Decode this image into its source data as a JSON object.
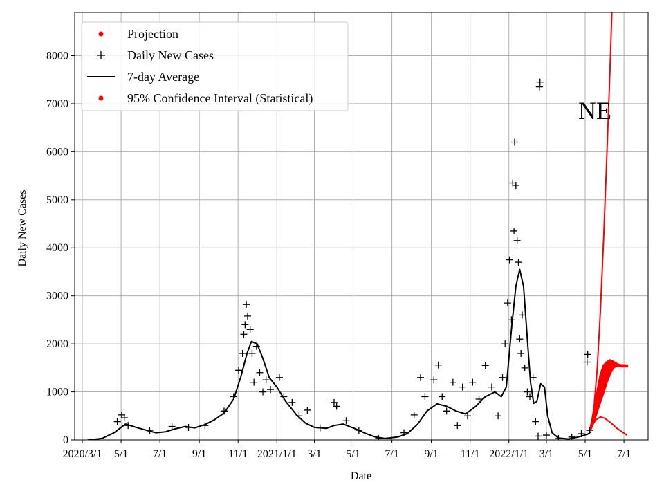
{
  "chart_data": {
    "type": "scatter",
    "annotation": "NE",
    "xlabel": "Date",
    "ylabel": "Daily New Cases",
    "xlim": [
      "2020-02-18",
      "2022-08-08"
    ],
    "ylim": [
      0,
      8900
    ],
    "x_scale": "date",
    "grid": true,
    "legend_position": "top-left",
    "colors": {
      "projection": "#ff0000",
      "observed": "#000000",
      "grid": "#b0b0b0"
    },
    "x_ticks": [
      {
        "date": "2020-03-01",
        "label": "2020/3/1"
      },
      {
        "date": "2020-05-01",
        "label": "5/1"
      },
      {
        "date": "2020-07-01",
        "label": "7/1"
      },
      {
        "date": "2020-09-01",
        "label": "9/1"
      },
      {
        "date": "2020-11-01",
        "label": "11/1"
      },
      {
        "date": "2021-01-01",
        "label": "2021/1/1"
      },
      {
        "date": "2021-03-01",
        "label": "3/1"
      },
      {
        "date": "2021-05-01",
        "label": "5/1"
      },
      {
        "date": "2021-07-01",
        "label": "7/1"
      },
      {
        "date": "2021-09-01",
        "label": "9/1"
      },
      {
        "date": "2021-11-01",
        "label": "11/1"
      },
      {
        "date": "2022-01-01",
        "label": "2022/1/1"
      },
      {
        "date": "2022-03-01",
        "label": "3/1"
      },
      {
        "date": "2022-05-01",
        "label": "5/1"
      },
      {
        "date": "2022-07-01",
        "label": "7/1"
      }
    ],
    "y_ticks": [
      0,
      1000,
      2000,
      3000,
      4000,
      5000,
      6000,
      7000,
      8000
    ],
    "legend": [
      {
        "label": "Projection",
        "marker": "dot",
        "color": "#ff0000"
      },
      {
        "label": "Daily New Cases",
        "marker": "plus",
        "color": "#000000"
      },
      {
        "label": "7-day Average",
        "marker": "line",
        "color": "#000000"
      },
      {
        "label": "95% Confidence Interval (Statistical)",
        "marker": "dot",
        "color": "#ff0000"
      }
    ],
    "series": [
      {
        "name": "7-day Average",
        "kind": "line",
        "color": "#000000",
        "points": [
          [
            "2020-03-10",
            0
          ],
          [
            "2020-04-01",
            30
          ],
          [
            "2020-04-20",
            150
          ],
          [
            "2020-05-08",
            330
          ],
          [
            "2020-05-25",
            260
          ],
          [
            "2020-06-10",
            200
          ],
          [
            "2020-06-25",
            150
          ],
          [
            "2020-07-10",
            170
          ],
          [
            "2020-07-25",
            230
          ],
          [
            "2020-08-10",
            280
          ],
          [
            "2020-08-25",
            250
          ],
          [
            "2020-09-10",
            320
          ],
          [
            "2020-09-25",
            420
          ],
          [
            "2020-10-10",
            560
          ],
          [
            "2020-10-25",
            850
          ],
          [
            "2020-11-05",
            1300
          ],
          [
            "2020-11-15",
            1800
          ],
          [
            "2020-11-22",
            2050
          ],
          [
            "2020-12-01",
            2000
          ],
          [
            "2020-12-10",
            1700
          ],
          [
            "2020-12-20",
            1300
          ],
          [
            "2021-01-01",
            1100
          ],
          [
            "2021-01-15",
            800
          ],
          [
            "2021-02-01",
            520
          ],
          [
            "2021-02-15",
            350
          ],
          [
            "2021-03-01",
            260
          ],
          [
            "2021-03-20",
            240
          ],
          [
            "2021-04-01",
            300
          ],
          [
            "2021-04-15",
            330
          ],
          [
            "2021-05-01",
            250
          ],
          [
            "2021-05-20",
            140
          ],
          [
            "2021-06-05",
            60
          ],
          [
            "2021-06-20",
            30
          ],
          [
            "2021-07-10",
            60
          ],
          [
            "2021-07-25",
            130
          ],
          [
            "2021-08-10",
            320
          ],
          [
            "2021-08-25",
            600
          ],
          [
            "2021-09-10",
            750
          ],
          [
            "2021-09-25",
            700
          ],
          [
            "2021-10-10",
            600
          ],
          [
            "2021-10-25",
            540
          ],
          [
            "2021-11-10",
            700
          ],
          [
            "2021-11-25",
            900
          ],
          [
            "2021-12-10",
            1000
          ],
          [
            "2021-12-20",
            900
          ],
          [
            "2021-12-28",
            1100
          ],
          [
            "2022-01-05",
            2300
          ],
          [
            "2022-01-12",
            3200
          ],
          [
            "2022-01-18",
            3550
          ],
          [
            "2022-01-24",
            3200
          ],
          [
            "2022-01-30",
            2100
          ],
          [
            "2022-02-04",
            1200
          ],
          [
            "2022-02-09",
            760
          ],
          [
            "2022-02-14",
            800
          ],
          [
            "2022-02-20",
            1170
          ],
          [
            "2022-02-26",
            1100
          ],
          [
            "2022-03-03",
            500
          ],
          [
            "2022-03-10",
            150
          ],
          [
            "2022-03-20",
            40
          ],
          [
            "2022-04-05",
            20
          ],
          [
            "2022-04-20",
            60
          ],
          [
            "2022-05-05",
            120
          ],
          [
            "2022-05-10",
            170
          ]
        ]
      },
      {
        "name": "Daily New Cases",
        "kind": "scatter",
        "marker": "plus",
        "color": "#000000",
        "points": [
          [
            "2020-04-25",
            380
          ],
          [
            "2020-05-02",
            520
          ],
          [
            "2020-05-06",
            460
          ],
          [
            "2020-05-12",
            300
          ],
          [
            "2020-06-15",
            200
          ],
          [
            "2020-07-20",
            280
          ],
          [
            "2020-08-15",
            260
          ],
          [
            "2020-09-10",
            300
          ],
          [
            "2020-10-10",
            600
          ],
          [
            "2020-10-25",
            900
          ],
          [
            "2020-11-02",
            1450
          ],
          [
            "2020-11-08",
            1800
          ],
          [
            "2020-11-10",
            2200
          ],
          [
            "2020-11-12",
            2400
          ],
          [
            "2020-11-14",
            2820
          ],
          [
            "2020-11-16",
            2580
          ],
          [
            "2020-11-20",
            2300
          ],
          [
            "2020-11-23",
            1800
          ],
          [
            "2020-11-26",
            1200
          ],
          [
            "2020-11-30",
            1950
          ],
          [
            "2020-12-05",
            1400
          ],
          [
            "2020-12-10",
            1000
          ],
          [
            "2020-12-15",
            1250
          ],
          [
            "2020-12-22",
            1050
          ],
          [
            "2021-01-05",
            1300
          ],
          [
            "2021-01-12",
            900
          ],
          [
            "2021-01-25",
            780
          ],
          [
            "2021-02-05",
            500
          ],
          [
            "2021-02-18",
            620
          ],
          [
            "2021-03-10",
            250
          ],
          [
            "2021-04-01",
            780
          ],
          [
            "2021-04-05",
            700
          ],
          [
            "2021-04-20",
            400
          ],
          [
            "2021-05-10",
            200
          ],
          [
            "2021-06-10",
            30
          ],
          [
            "2021-07-20",
            150
          ],
          [
            "2021-08-05",
            520
          ],
          [
            "2021-08-15",
            1300
          ],
          [
            "2021-08-22",
            900
          ],
          [
            "2021-09-05",
            1250
          ],
          [
            "2021-09-12",
            1560
          ],
          [
            "2021-09-18",
            900
          ],
          [
            "2021-09-25",
            600
          ],
          [
            "2021-10-05",
            1200
          ],
          [
            "2021-10-12",
            300
          ],
          [
            "2021-10-20",
            1100
          ],
          [
            "2021-10-28",
            500
          ],
          [
            "2021-11-05",
            1200
          ],
          [
            "2021-11-15",
            850
          ],
          [
            "2021-11-25",
            1550
          ],
          [
            "2021-12-05",
            1100
          ],
          [
            "2021-12-15",
            500
          ],
          [
            "2021-12-22",
            1300
          ],
          [
            "2021-12-26",
            2000
          ],
          [
            "2021-12-30",
            2850
          ],
          [
            "2022-01-02",
            3750
          ],
          [
            "2022-01-05",
            2500
          ],
          [
            "2022-01-07",
            5350
          ],
          [
            "2022-01-09",
            4350
          ],
          [
            "2022-01-10",
            6200
          ],
          [
            "2022-01-12",
            5300
          ],
          [
            "2022-01-14",
            4150
          ],
          [
            "2022-01-16",
            3700
          ],
          [
            "2022-01-18",
            2100
          ],
          [
            "2022-01-20",
            1800
          ],
          [
            "2022-01-22",
            2600
          ],
          [
            "2022-01-26",
            1500
          ],
          [
            "2022-01-30",
            1000
          ],
          [
            "2022-02-03",
            900
          ],
          [
            "2022-02-08",
            1300
          ],
          [
            "2022-02-12",
            380
          ],
          [
            "2022-02-16",
            80
          ],
          [
            "2022-02-18",
            7350
          ],
          [
            "2022-02-19",
            7450
          ],
          [
            "2022-03-01",
            100
          ],
          [
            "2022-03-20",
            30
          ],
          [
            "2022-04-10",
            60
          ],
          [
            "2022-04-25",
            130
          ],
          [
            "2022-05-04",
            1620
          ],
          [
            "2022-05-05",
            1780
          ],
          [
            "2022-05-08",
            200
          ]
        ]
      },
      {
        "name": "Projection",
        "kind": "line",
        "color": "#ff0000",
        "points": [
          [
            "2022-05-10",
            250
          ],
          [
            "2022-05-15",
            700
          ],
          [
            "2022-05-20",
            1500
          ],
          [
            "2022-05-25",
            2700
          ],
          [
            "2022-05-30",
            4200
          ],
          [
            "2022-06-04",
            5900
          ],
          [
            "2022-06-09",
            7700
          ],
          [
            "2022-06-12",
            8900
          ]
        ]
      },
      {
        "name": "95% Confidence Interval (Statistical)",
        "kind": "band",
        "color": "#ff0000",
        "upper": [
          [
            "2022-05-10",
            280
          ],
          [
            "2022-05-15",
            600
          ],
          [
            "2022-05-20",
            1000
          ],
          [
            "2022-05-25",
            1350
          ],
          [
            "2022-05-30",
            1550
          ],
          [
            "2022-06-04",
            1620
          ],
          [
            "2022-06-09",
            1660
          ],
          [
            "2022-06-14",
            1630
          ],
          [
            "2022-06-19",
            1590
          ],
          [
            "2022-06-24",
            1560
          ],
          [
            "2022-06-29",
            1555
          ],
          [
            "2022-07-06",
            1550
          ]
        ],
        "lower": [
          [
            "2022-05-10",
            230
          ],
          [
            "2022-05-15",
            400
          ],
          [
            "2022-05-20",
            600
          ],
          [
            "2022-05-25",
            800
          ],
          [
            "2022-05-30",
            1000
          ],
          [
            "2022-06-04",
            1200
          ],
          [
            "2022-06-09",
            1380
          ],
          [
            "2022-06-14",
            1500
          ],
          [
            "2022-06-19",
            1540
          ],
          [
            "2022-06-24",
            1540
          ],
          [
            "2022-06-29",
            1530
          ],
          [
            "2022-07-06",
            1530
          ]
        ],
        "lower_curve": [
          [
            "2022-05-10",
            260
          ],
          [
            "2022-05-18",
            420
          ],
          [
            "2022-05-25",
            480
          ],
          [
            "2022-06-01",
            450
          ],
          [
            "2022-06-10",
            360
          ],
          [
            "2022-06-20",
            240
          ],
          [
            "2022-06-30",
            150
          ],
          [
            "2022-07-06",
            100
          ]
        ]
      }
    ]
  }
}
